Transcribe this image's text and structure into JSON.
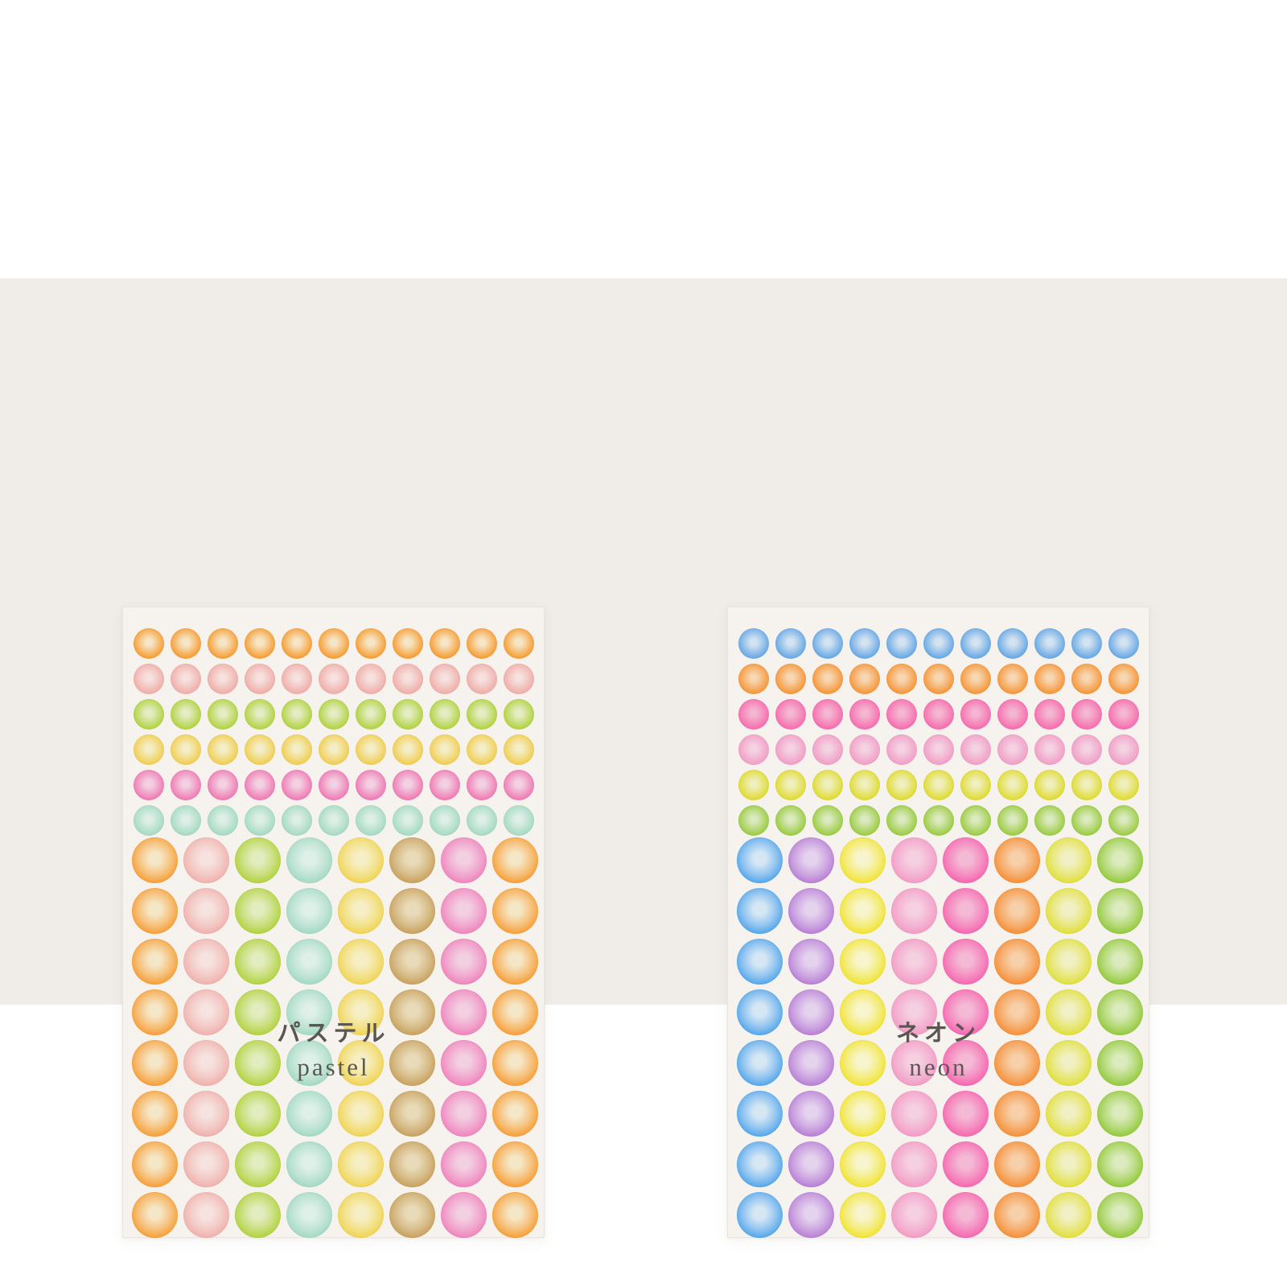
{
  "page": {
    "background_color": "#FFFFFF",
    "photo_band_color": "#F0ECE7",
    "sheet_color": "#F6F2ED",
    "caption_ja_color": "#5B5651",
    "caption_en_color": "#5C5753"
  },
  "sheets": [
    {
      "id": "pastel",
      "label_ja": "パステル",
      "label_en": "pastel",
      "small_grid": {
        "rows": 6,
        "cols": 11
      },
      "large_grid": {
        "rows": 8,
        "cols": 8
      },
      "small_dot_rows": [
        {
          "name": "orange",
          "ring": "#F7A03A",
          "center": "#F5E6C8"
        },
        {
          "name": "salmon-pink",
          "ring": "#F0B0AB",
          "center": "#F6E1DF"
        },
        {
          "name": "yellow-green",
          "ring": "#B4D448",
          "center": "#E4ECC4"
        },
        {
          "name": "pale-yellow",
          "ring": "#F0CF58",
          "center": "#F4EEC8"
        },
        {
          "name": "bright-pink",
          "ring": "#F07EB7",
          "center": "#F2D2E2"
        },
        {
          "name": "mint",
          "ring": "#A8DBC4",
          "center": "#DEEFE7"
        }
      ],
      "large_dot_columns": [
        {
          "name": "orange",
          "ring": "#F7A03A",
          "center": "#F5E6C6"
        },
        {
          "name": "salmon-pink",
          "ring": "#F0B2AD",
          "center": "#F6E2DF"
        },
        {
          "name": "yellow-green",
          "ring": "#B3D342",
          "center": "#E2ECBE"
        },
        {
          "name": "mint",
          "ring": "#A4DAC5",
          "center": "#DFF0E9"
        },
        {
          "name": "yellow",
          "ring": "#F0D556",
          "center": "#F6EFC6"
        },
        {
          "name": "tan",
          "ring": "#C9A260",
          "center": "#E9DBB9"
        },
        {
          "name": "bright-pink",
          "ring": "#F086BE",
          "center": "#F3CFE2"
        },
        {
          "name": "orange",
          "ring": "#F7A03A",
          "center": "#F5E6C6"
        }
      ]
    },
    {
      "id": "neon",
      "label_ja": "ネオン",
      "label_en": "neon",
      "small_grid": {
        "rows": 6,
        "cols": 11
      },
      "large_grid": {
        "rows": 8,
        "cols": 8
      },
      "small_dot_rows": [
        {
          "name": "blue",
          "ring": "#6CABE6",
          "center": "#D4E3F0"
        },
        {
          "name": "orange",
          "ring": "#F69940",
          "center": "#F7D7B2"
        },
        {
          "name": "hot-pink",
          "ring": "#F670B1",
          "center": "#F4B6D0"
        },
        {
          "name": "light-pink",
          "ring": "#F1A1C7",
          "center": "#F4D2E2"
        },
        {
          "name": "neon-yellow",
          "ring": "#E0DC38",
          "center": "#EFEFC0"
        },
        {
          "name": "neon-green",
          "ring": "#9ECD48",
          "center": "#DBE9BE"
        }
      ],
      "large_dot_columns": [
        {
          "name": "blue",
          "ring": "#57A8EC",
          "center": "#D6E7F4"
        },
        {
          "name": "purple",
          "ring": "#B981D6",
          "center": "#E5D3EE"
        },
        {
          "name": "yellow",
          "ring": "#F1E436",
          "center": "#F8F5CE"
        },
        {
          "name": "light-pink",
          "ring": "#F39CC5",
          "center": "#F5D0E1"
        },
        {
          "name": "hot-pink",
          "ring": "#F668B1",
          "center": "#F4BAD5"
        },
        {
          "name": "orange",
          "ring": "#F6903A",
          "center": "#F7D0AA"
        },
        {
          "name": "neon-yellow",
          "ring": "#E1E03E",
          "center": "#F1F0C4"
        },
        {
          "name": "green",
          "ring": "#95CA3E",
          "center": "#DBEBBE"
        }
      ]
    }
  ]
}
